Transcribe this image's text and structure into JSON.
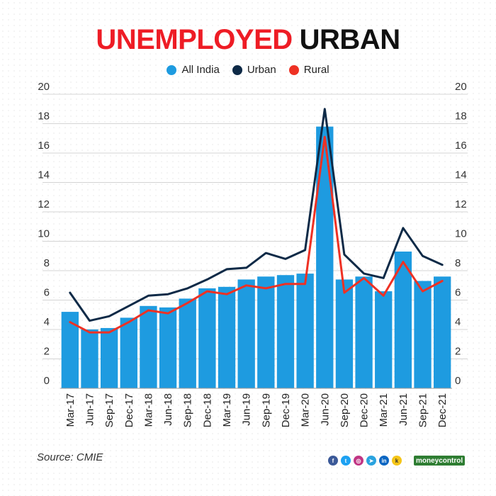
{
  "title": {
    "part1": "UNEMPLOYED",
    "part2": "URBAN"
  },
  "legend": [
    {
      "label": "All India",
      "color": "#1e9be0"
    },
    {
      "label": "Urban",
      "color": "#0e2a47"
    },
    {
      "label": "Rural",
      "color": "#ee3124"
    }
  ],
  "source": "Source: CMIE",
  "footer": {
    "icons": [
      "facebook-icon",
      "twitter-icon",
      "instagram-icon",
      "telegram-icon",
      "linkedin-icon",
      "koo-icon"
    ],
    "brand": "moneycontrol"
  },
  "chart_data": {
    "type": "bar",
    "categories": [
      "Mar-17",
      "Jun-17",
      "Sep-17",
      "Dec-17",
      "Mar-18",
      "Jun-18",
      "Sep-18",
      "Dec-18",
      "Mar-19",
      "Jun-19",
      "Sep-19",
      "Dec-19",
      "Mar-20",
      "Jun-20",
      "Sep-20",
      "Dec-20",
      "Mar-21",
      "Jun-21",
      "Sep-21",
      "Dec-21"
    ],
    "series": [
      {
        "name": "All India",
        "type": "bar",
        "color": "#1e9be0",
        "values": [
          5.2,
          4.0,
          4.1,
          4.8,
          5.6,
          5.5,
          6.1,
          6.8,
          6.9,
          7.4,
          7.6,
          7.7,
          7.8,
          17.8,
          7.4,
          7.6,
          6.6,
          9.3,
          7.3,
          7.6
        ]
      },
      {
        "name": "Urban",
        "type": "line",
        "color": "#0e2a47",
        "values": [
          6.5,
          4.6,
          4.9,
          5.6,
          6.3,
          6.4,
          6.8,
          7.4,
          8.1,
          8.2,
          9.2,
          8.8,
          9.4,
          19.0,
          9.1,
          7.8,
          7.5,
          10.9,
          9.0,
          8.4
        ]
      },
      {
        "name": "Rural",
        "type": "line",
        "color": "#ee3124",
        "values": [
          4.5,
          3.8,
          3.8,
          4.5,
          5.3,
          5.1,
          5.8,
          6.6,
          6.4,
          7.0,
          6.8,
          7.1,
          7.1,
          17.1,
          6.5,
          7.5,
          6.3,
          8.6,
          6.6,
          7.3
        ]
      }
    ],
    "yticks": [
      0,
      2,
      4,
      6,
      8,
      10,
      12,
      14,
      16,
      18,
      20
    ],
    "ylim": [
      0,
      20
    ],
    "grid": true,
    "legend_position": "top-center",
    "xlabel": "",
    "ylabel": ""
  }
}
